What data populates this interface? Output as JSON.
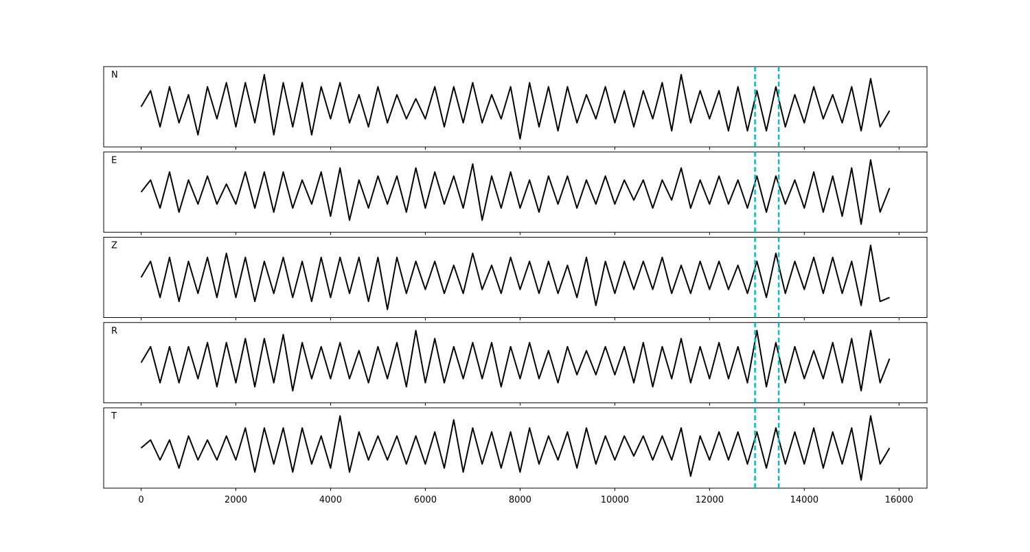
{
  "chart_data": {
    "type": "line",
    "layout": "stacked",
    "x": [
      0,
      200,
      400,
      600,
      800,
      1000,
      1200,
      1400,
      1600,
      1800,
      2000,
      2200,
      2400,
      2600,
      2800,
      3000,
      3200,
      3400,
      3600,
      3800,
      4000,
      4200,
      4400,
      4600,
      4800,
      5000,
      5200,
      5400,
      5600,
      5800,
      6000,
      6200,
      6400,
      6600,
      6800,
      7000,
      7200,
      7400,
      7600,
      7800,
      8000,
      8200,
      8400,
      8600,
      8800,
      9000,
      9200,
      9400,
      9600,
      9800,
      10000,
      10200,
      10400,
      10600,
      10800,
      11000,
      11200,
      11400,
      11600,
      11800,
      12000,
      12200,
      12400,
      12600,
      12800,
      13000,
      13200,
      13400,
      13600,
      13800,
      14000,
      14200,
      14400,
      14600,
      14800,
      15000,
      15200,
      15400,
      15600,
      15800
    ],
    "series": [
      {
        "name": "N",
        "color": "#000000",
        "values": [
          0,
          0.4,
          -0.5,
          0.5,
          -0.4,
          0.3,
          -0.7,
          0.5,
          -0.3,
          0.6,
          -0.5,
          0.6,
          -0.4,
          0.8,
          -0.7,
          0.6,
          -0.5,
          0.6,
          -0.7,
          0.5,
          -0.3,
          0.6,
          -0.4,
          0.3,
          -0.5,
          0.5,
          -0.4,
          0.3,
          -0.3,
          0.2,
          -0.3,
          0.5,
          -0.5,
          0.5,
          -0.4,
          0.6,
          -0.4,
          0.3,
          -0.3,
          0.5,
          -0.8,
          0.6,
          -0.5,
          0.5,
          -0.6,
          0.5,
          -0.4,
          0.3,
          -0.3,
          0.5,
          -0.4,
          0.4,
          -0.5,
          0.4,
          -0.3,
          0.6,
          -0.6,
          0.8,
          -0.4,
          0.4,
          -0.3,
          0.4,
          -0.6,
          0.5,
          -0.6,
          0.4,
          -0.6,
          0.5,
          -0.5,
          0.3,
          -0.4,
          0.5,
          -0.3,
          0.3,
          -0.4,
          0.5,
          -0.6,
          0.7,
          -0.5,
          -0.1
        ]
      },
      {
        "name": "E",
        "color": "#000000",
        "values": [
          0,
          0.3,
          -0.4,
          0.5,
          -0.5,
          0.3,
          -0.3,
          0.4,
          -0.3,
          0.2,
          -0.3,
          0.5,
          -0.4,
          0.5,
          -0.5,
          0.5,
          -0.4,
          0.3,
          -0.3,
          0.5,
          -0.6,
          0.6,
          -0.7,
          0.3,
          -0.4,
          0.4,
          -0.3,
          0.4,
          -0.5,
          0.6,
          -0.4,
          0.5,
          -0.3,
          0.4,
          -0.4,
          0.7,
          -0.7,
          0.4,
          -0.4,
          0.5,
          -0.4,
          0.3,
          -0.5,
          0.4,
          -0.3,
          0.4,
          -0.4,
          0.3,
          -0.3,
          0.4,
          -0.3,
          0.3,
          -0.2,
          0.3,
          -0.4,
          0.3,
          -0.2,
          0.6,
          -0.4,
          0.3,
          -0.3,
          0.4,
          -0.3,
          0.3,
          -0.4,
          0.4,
          -0.5,
          0.4,
          -0.3,
          0.3,
          -0.4,
          0.5,
          -0.5,
          0.4,
          -0.6,
          0.6,
          -0.8,
          0.8,
          -0.5,
          0.1
        ]
      },
      {
        "name": "Z",
        "color": "#000000",
        "values": [
          0,
          0.4,
          -0.5,
          0.5,
          -0.6,
          0.4,
          -0.4,
          0.5,
          -0.5,
          0.6,
          -0.5,
          0.5,
          -0.6,
          0.4,
          -0.4,
          0.5,
          -0.5,
          0.4,
          -0.6,
          0.5,
          -0.5,
          0.5,
          -0.4,
          0.5,
          -0.6,
          0.5,
          -0.8,
          0.5,
          -0.4,
          0.4,
          -0.3,
          0.4,
          -0.4,
          0.3,
          -0.4,
          0.6,
          -0.3,
          0.3,
          -0.4,
          0.5,
          -0.3,
          0.4,
          -0.4,
          0.4,
          -0.4,
          0.3,
          -0.5,
          0.5,
          -0.7,
          0.4,
          -0.4,
          0.4,
          -0.3,
          0.4,
          -0.3,
          0.5,
          -0.4,
          0.3,
          -0.4,
          0.4,
          -0.3,
          0.4,
          -0.3,
          0.3,
          -0.4,
          0.4,
          -0.5,
          0.6,
          -0.4,
          0.4,
          -0.3,
          0.5,
          -0.4,
          0.5,
          -0.4,
          0.4,
          -0.7,
          0.8,
          -0.6,
          -0.5
        ]
      },
      {
        "name": "R",
        "color": "#000000",
        "values": [
          0,
          0.4,
          -0.5,
          0.4,
          -0.5,
          0.4,
          -0.4,
          0.5,
          -0.6,
          0.5,
          -0.5,
          0.6,
          -0.6,
          0.6,
          -0.5,
          0.7,
          -0.7,
          0.5,
          -0.4,
          0.4,
          -0.4,
          0.5,
          -0.4,
          0.3,
          -0.5,
          0.4,
          -0.4,
          0.5,
          -0.6,
          0.8,
          -0.5,
          0.6,
          -0.5,
          0.4,
          -0.4,
          0.5,
          -0.4,
          0.5,
          -0.6,
          0.4,
          -0.4,
          0.5,
          -0.4,
          0.3,
          -0.5,
          0.4,
          -0.3,
          0.3,
          -0.3,
          0.4,
          -0.3,
          0.4,
          -0.5,
          0.5,
          -0.6,
          0.4,
          -0.4,
          0.6,
          -0.5,
          0.4,
          -0.4,
          0.5,
          -0.4,
          0.4,
          -0.5,
          0.8,
          -0.6,
          0.5,
          -0.5,
          0.4,
          -0.4,
          0.3,
          -0.4,
          0.5,
          -0.5,
          0.6,
          -0.7,
          0.8,
          -0.5,
          0.1
        ]
      },
      {
        "name": "T",
        "color": "#000000",
        "values": [
          0,
          0.2,
          -0.3,
          0.2,
          -0.5,
          0.3,
          -0.3,
          0.2,
          -0.3,
          0.3,
          -0.3,
          0.5,
          -0.6,
          0.5,
          -0.4,
          0.5,
          -0.6,
          0.5,
          -0.4,
          0.3,
          -0.5,
          0.8,
          -0.6,
          0.4,
          -0.3,
          0.3,
          -0.3,
          0.3,
          -0.4,
          0.3,
          -0.4,
          0.4,
          -0.5,
          0.7,
          -0.6,
          0.5,
          -0.4,
          0.4,
          -0.5,
          0.4,
          -0.6,
          0.5,
          -0.4,
          0.3,
          -0.3,
          0.4,
          -0.5,
          0.5,
          -0.4,
          0.3,
          -0.3,
          0.3,
          -0.2,
          0.3,
          -0.3,
          0.3,
          -0.3,
          0.5,
          -0.7,
          0.3,
          -0.3,
          0.4,
          -0.3,
          0.4,
          -0.4,
          0.4,
          -0.5,
          0.5,
          -0.4,
          0.4,
          -0.4,
          0.5,
          -0.5,
          0.4,
          -0.4,
          0.5,
          -0.8,
          0.8,
          -0.4,
          0
        ]
      }
    ],
    "xlim": [
      -790,
      16590
    ],
    "ylim": [
      -1,
      1
    ],
    "xticks": [
      0,
      2000,
      4000,
      6000,
      8000,
      10000,
      12000,
      14000,
      16000
    ],
    "vlines": [
      12960,
      13460
    ],
    "vline_color": "#00bfbf"
  }
}
